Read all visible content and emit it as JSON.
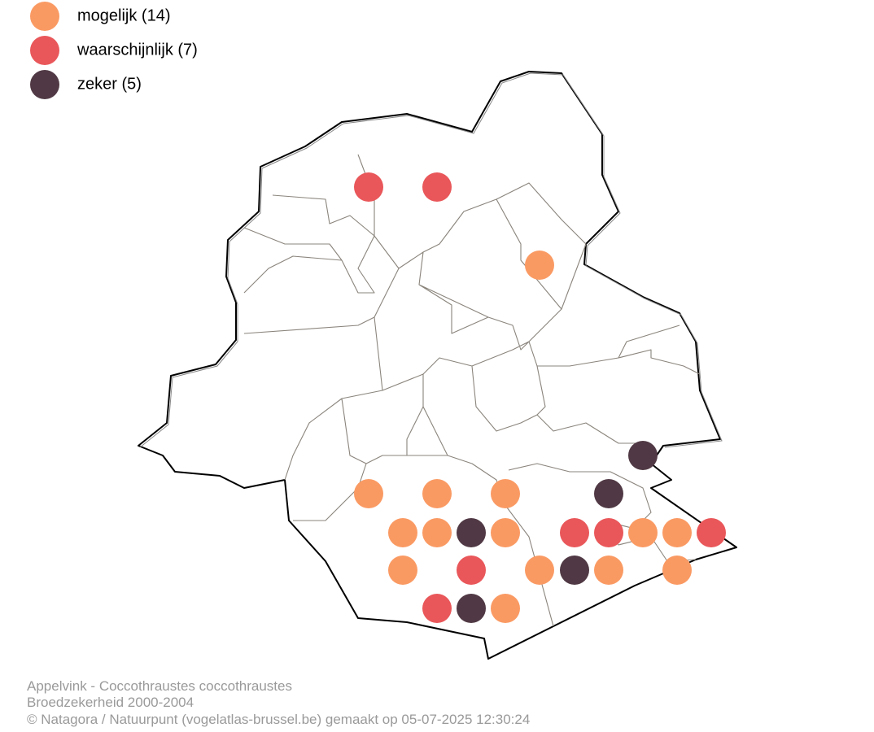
{
  "legend": [
    "mogelijk (14)",
    "waarschijnlijk (7)",
    "zeker (5)"
  ],
  "footer": [
    "Appelvink - Coccothraustes coccothraustes",
    "Broedzekerheid 2000-2004",
    "© Natagora / Natuurpunt (vogelatlas-brussel.be) gemaakt op 05-07-2025 12:30:24"
  ]
}
